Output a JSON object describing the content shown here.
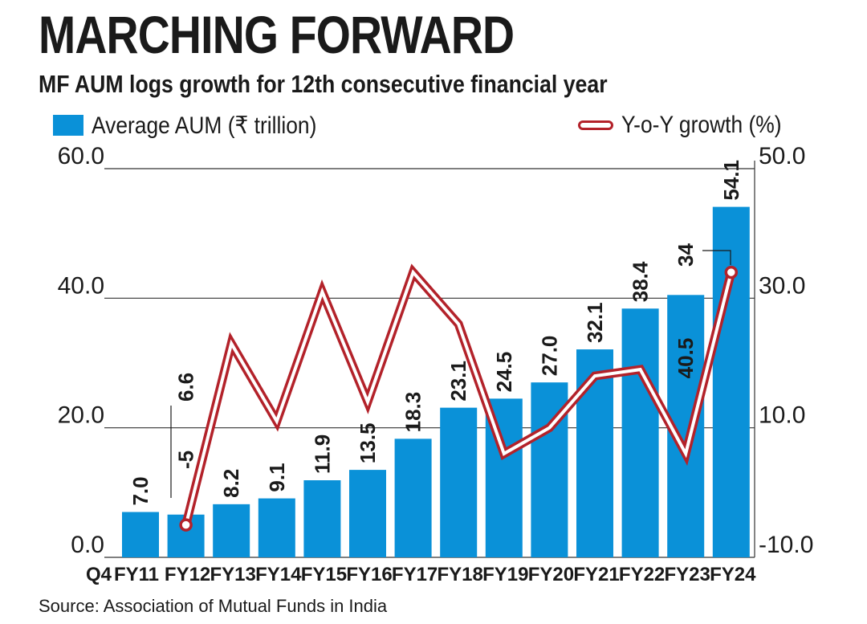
{
  "title": "MARCHING FORWARD",
  "subtitle": "MF AUM logs growth for 12th consecutive financial year",
  "legend": {
    "bars": "Average AUM (₹ trillion)",
    "line": "Y-o-Y growth (%)"
  },
  "source": "Source: Association of Mutual Funds in India",
  "colors": {
    "bar": "#0a91d8",
    "line": "#b3222a",
    "grid": "#333333",
    "text": "#1a1a1a"
  },
  "chart_data": {
    "type": "bar",
    "categories": [
      "Q4 FY11",
      "FY12",
      "FY13",
      "FY14",
      "FY15",
      "FY16",
      "FY17",
      "FY18",
      "FY19",
      "FY20",
      "FY21",
      "FY22",
      "FY23",
      "FY24"
    ],
    "series": [
      {
        "name": "Average AUM (₹ trillion)",
        "type": "bar",
        "axis": "left",
        "values": [
          7.0,
          6.6,
          8.2,
          9.1,
          11.9,
          13.5,
          18.3,
          23.1,
          24.5,
          27.0,
          32.1,
          38.4,
          40.5,
          54.1
        ],
        "labels": [
          "7.0",
          "6.6",
          "8.2",
          "9.1",
          "11.9",
          "13.5",
          "18.3",
          "23.1",
          "24.5",
          "27.0",
          "32.1",
          "38.4",
          "40.5",
          "54.1"
        ]
      },
      {
        "name": "Y-o-Y growth (%)",
        "type": "line",
        "axis": "right",
        "values": [
          null,
          -5,
          23,
          11,
          31,
          14,
          34,
          26,
          6,
          10,
          18,
          19,
          6,
          34
        ],
        "labels": [
          "",
          "-5",
          "",
          "",
          "",
          "",
          "",
          "",
          "",
          "",
          "",
          "",
          "",
          "34"
        ]
      }
    ],
    "left_axis": {
      "ylim": [
        0,
        60
      ],
      "ticks": [
        "0.0",
        "20.0",
        "40.0",
        "60.0"
      ]
    },
    "right_axis": {
      "ylim": [
        -10,
        50
      ],
      "ticks": [
        "-10.0",
        "10.0",
        "30.0",
        "50.0"
      ]
    },
    "grid": true,
    "legend_position": "top"
  }
}
